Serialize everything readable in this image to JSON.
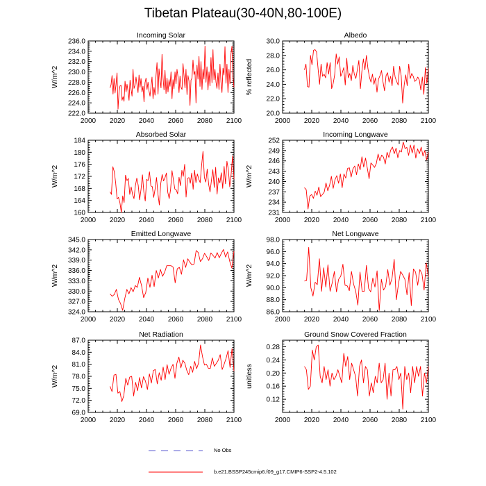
{
  "title": "Tibetan Plateau(30-40N,80-100E)",
  "colors": {
    "series": "#ff0000",
    "axis": "#000000",
    "obs": "#5b5bd0"
  },
  "legend": {
    "obs_label": "No Obs",
    "model_label": "b.e21.BSSP245cmip6.f09_g17.CMIP6-SSP2-4.5.102"
  },
  "chart_data": [
    {
      "type": "line",
      "title": "Incoming Solar",
      "ylabel": "W/m^2",
      "xlim": [
        2000,
        2100
      ],
      "ylim": [
        222,
        236
      ],
      "xticks": [
        2000,
        2020,
        2040,
        2060,
        2080,
        2100
      ],
      "xticklabels": [
        "2000",
        "2020",
        "2040",
        "2060",
        "2080",
        "2100"
      ],
      "yticks": [
        222,
        224,
        226,
        228,
        230,
        232,
        234,
        236
      ],
      "yticklabels": [
        "222.0",
        "224.0",
        "226.0",
        "228.0",
        "230.0",
        "232.0",
        "234.0",
        "236.0"
      ],
      "x_start": 2015,
      "values": [
        226.9,
        227.5,
        229.3,
        225.7,
        228.7,
        225.9,
        227.6,
        229.8,
        222.8,
        226.2,
        227.3,
        227.4,
        224.5,
        225.2,
        224.3,
        228.2,
        226.1,
        227.6,
        226.3,
        224.5,
        228.4,
        226.7,
        225.3,
        230.5,
        226.8,
        227.4,
        229.0,
        227.5,
        226.0,
        229.4,
        227.0,
        228.7,
        226.1,
        227.2,
        224.2,
        227.9,
        228.8,
        226.6,
        228.0,
        226.3,
        225.3,
        227.2,
        229.0,
        224.8,
        227.0,
        225.5,
        229.3,
        231.8,
        225.7,
        230.6,
        228.4,
        226.9,
        233.4,
        228.9,
        226.5,
        230.3,
        225.8,
        228.8,
        226.1,
        228.5,
        227.2,
        230.0,
        224.8,
        228.5,
        226.7,
        230.0,
        227.7,
        230.5,
        229.0,
        226.0,
        229.2,
        227.0,
        226.6,
        231.6,
        229.3,
        226.9,
        230.5,
        225.6,
        229.3,
        228.2,
        223.5,
        228.4,
        228.8,
        232.3,
        229.5,
        230.1,
        224.0,
        231.3,
        228.6,
        233.0,
        227.2,
        232.0,
        226.6,
        230.5,
        228.6,
        235.0,
        228.0,
        231.0,
        226.5,
        230.0,
        227.3,
        232.8,
        227.9,
        234.3,
        228.5,
        230.5,
        228.0,
        226.8,
        229.8,
        226.6,
        231.5,
        228.0,
        226.0,
        230.7,
        229.4,
        234.9,
        227.8,
        231.5,
        226.0,
        230.5,
        227.7,
        233.5,
        235.0,
        229.0,
        227.0
      ]
    },
    {
      "type": "line",
      "title": "Albedo",
      "ylabel": "% reflected",
      "xlim": [
        2000,
        2100
      ],
      "ylim": [
        20,
        30
      ],
      "xticks": [
        2000,
        2020,
        2040,
        2060,
        2080,
        2100
      ],
      "xticklabels": [
        "2000",
        "2020",
        "2040",
        "2060",
        "2080",
        "2100"
      ],
      "yticks": [
        20,
        22,
        24,
        26,
        28,
        30
      ],
      "yticklabels": [
        "20.0",
        "22.0",
        "24.0",
        "26.0",
        "28.0",
        "30.0"
      ],
      "x_start": 2015,
      "values": [
        26.0,
        26.8,
        23.7,
        23.6,
        28.0,
        26.7,
        28.7,
        28.8,
        28.5,
        26.2,
        24.0,
        26.8,
        25.1,
        25.4,
        24.9,
        27.0,
        25.4,
        27.0,
        23.4,
        24.1,
        25.3,
        28.2,
        26.8,
        27.8,
        25.1,
        25.6,
        26.3,
        23.9,
        27.6,
        24.9,
        25.5,
        24.5,
        26.6,
        25.4,
        24.8,
        26.0,
        27.3,
        23.4,
        25.8,
        27.5,
        26.0,
        28.0,
        26.2,
        25.0,
        24.3,
        25.4,
        24.0,
        24.9,
        22.9,
        24.7,
        25.2,
        25.9,
        24.3,
        23.1,
        25.2,
        25.6,
        24.3,
        25.1,
        23.8,
        26.5,
        25.0,
        24.4,
        23.9,
        26.5,
        25.2,
        21.4,
        23.9,
        25.3,
        23.8,
        26.8,
        24.8,
        25.5,
        25.1,
        24.4,
        24.6,
        25.0,
        24.6,
        23.2,
        25.0,
        22.6,
        26.3,
        24.1,
        26.2
      ]
    },
    {
      "type": "line",
      "title": "Absorbed Solar",
      "ylabel": "W/m^2",
      "xlim": [
        2000,
        2100
      ],
      "ylim": [
        160,
        184
      ],
      "xticks": [
        2000,
        2020,
        2040,
        2060,
        2080,
        2100
      ],
      "xticklabels": [
        "2000",
        "2020",
        "2040",
        "2060",
        "2080",
        "2100"
      ],
      "yticks": [
        160,
        164,
        168,
        172,
        176,
        180,
        184
      ],
      "yticklabels": [
        "160",
        "164",
        "168",
        "172",
        "176",
        "180",
        "184"
      ],
      "x_start": 2015,
      "values": [
        166.9,
        166.0,
        175.2,
        173.6,
        169.8,
        164.5,
        165.0,
        163.3,
        160.0,
        165.5,
        163.3,
        172.4,
        170.6,
        171.3,
        166.0,
        168.5,
        166.0,
        164.6,
        168.9,
        171.4,
        169.0,
        164.2,
        167.7,
        172.5,
        166.8,
        163.8,
        171.0,
        170.6,
        173.5,
        168.8,
        168.6,
        165.0,
        167.8,
        171.6,
        166.2,
        162.5,
        169.6,
        172.6,
        170.5,
        171.5,
        173.1,
        166.7,
        164.6,
        167.7,
        173.9,
        170.8,
        167.8,
        167.5,
        166.2,
        171.7,
        168.9,
        174.0,
        172.0,
        176.0,
        165.1,
        171.3,
        171.6,
        169.7,
        173.1,
        167.7,
        174.0,
        169.9,
        172.8,
        171.1,
        169.9,
        175.6,
        180.3,
        171.6,
        170.1,
        174.4,
        169.4,
        166.8,
        170.7,
        174.2,
        168.3,
        175.0,
        166.1,
        171.5,
        169.8,
        173.2,
        168.0,
        175.3,
        169.5,
        177.0,
        174.2,
        168.5,
        172.8,
        178.8,
        171.0
      ]
    },
    {
      "type": "line",
      "title": "Incoming Longwave",
      "ylabel": "W/m^2",
      "xlim": [
        2000,
        2100
      ],
      "ylim": [
        231,
        252
      ],
      "xticks": [
        2000,
        2020,
        2040,
        2060,
        2080,
        2100
      ],
      "xticklabels": [
        "2000",
        "2020",
        "2040",
        "2060",
        "2080",
        "2100"
      ],
      "yticks": [
        231,
        234,
        237,
        240,
        243,
        246,
        249,
        252
      ],
      "yticklabels": [
        "231",
        "234",
        "237",
        "240",
        "243",
        "246",
        "249",
        "252"
      ],
      "x_start": 2015,
      "values": [
        238.2,
        237.6,
        232.0,
        235.8,
        236.2,
        235.1,
        237.2,
        236.0,
        238.4,
        235.6,
        236.2,
        236.9,
        239.6,
        237.3,
        238.9,
        241.5,
        238.0,
        240.5,
        241.7,
        239.5,
        242.2,
        238.2,
        242.2,
        241.0,
        243.8,
        244.0,
        241.3,
        243.7,
        244.5,
        242.0,
        245.1,
        243.4,
        247.2,
        244.2,
        246.8,
        243.9,
        240.8,
        245.4,
        244.8,
        244.1,
        245.2,
        248.0,
        246.0,
        247.7,
        247.1,
        245.1,
        248.5,
        247.0,
        249.1,
        250.0,
        248.1,
        249.7,
        246.9,
        249.0,
        248.6,
        251.5,
        249.6,
        249.9,
        247.6,
        250.6,
        248.3,
        250.6,
        246.8,
        249.5,
        248.1,
        250.0,
        247.4,
        249.0,
        246.3,
        248.5
      ]
    },
    {
      "type": "line",
      "title": "Emitted Longwave",
      "ylabel": "W/m^2",
      "xlim": [
        2000,
        2100
      ],
      "ylim": [
        324,
        345
      ],
      "xticks": [
        2000,
        2020,
        2040,
        2060,
        2080,
        2100
      ],
      "xticklabels": [
        "2000",
        "2020",
        "2040",
        "2060",
        "2080",
        "2100"
      ],
      "yticks": [
        324,
        327,
        330,
        333,
        336,
        339,
        342,
        345
      ],
      "yticklabels": [
        "324.0",
        "327.0",
        "330.0",
        "333.0",
        "336.0",
        "339.0",
        "342.0",
        "345.0"
      ],
      "x_start": 2015,
      "values": [
        329.2,
        328.5,
        329.0,
        330.5,
        327.6,
        326.4,
        324.4,
        327.8,
        330.5,
        329.2,
        331.0,
        329.8,
        331.6,
        331.1,
        334.0,
        331.6,
        328.1,
        329.6,
        333.8,
        331.1,
        334.6,
        331.3,
        336.0,
        333.8,
        336.3,
        334.3,
        335.5,
        337.4,
        337.4,
        337.4,
        337.0,
        332.4,
        336.5,
        336.9,
        334.9,
        339.1,
        336.9,
        339.4,
        338.4,
        337.6,
        337.9,
        341.8,
        341.2,
        338.6,
        339.4,
        341.0,
        340.0,
        338.9,
        341.1,
        340.4,
        339.6,
        341.2,
        339.7,
        341.0,
        342.1,
        339.9,
        341.4,
        338.6,
        336.7,
        341.6
      ]
    },
    {
      "type": "line",
      "title": "Net Longwave",
      "ylabel": "W/m^2",
      "xlim": [
        2000,
        2100
      ],
      "ylim": [
        86,
        98
      ],
      "xticks": [
        2000,
        2020,
        2040,
        2060,
        2080,
        2100
      ],
      "xticklabels": [
        "2000",
        "2020",
        "2040",
        "2060",
        "2080",
        "2100"
      ],
      "yticks": [
        86,
        88,
        90,
        92,
        94,
        96,
        98
      ],
      "yticklabels": [
        "86.0",
        "88.0",
        "90.0",
        "92.0",
        "94.0",
        "96.0",
        "98.0"
      ],
      "x_start": 2015,
      "values": [
        91.1,
        91.2,
        96.7,
        90.0,
        88.6,
        90.9,
        90.5,
        94.8,
        89.4,
        93.3,
        90.1,
        93.8,
        89.4,
        90.8,
        92.7,
        89.3,
        91.4,
        91.9,
        93.9,
        90.4,
        90.3,
        89.5,
        92.7,
        90.6,
        89.4,
        87.1,
        92.6,
        89.4,
        89.4,
        93.7,
        89.9,
        89.3,
        91.6,
        90.1,
        92.8,
        86.2,
        91.4,
        89.6,
        90.2,
        93.0,
        90.4,
        91.6,
        94.7,
        88.0,
        90.6,
        92.7,
        92.1,
        91.4,
        88.8,
        92.5,
        87.0,
        93.1,
        92.6,
        90.4,
        93.0,
        92.3,
        89.6,
        94.1,
        91.8
      ]
    },
    {
      "type": "line",
      "title": "Net Radiation",
      "ylabel": "W/m^2",
      "xlim": [
        2000,
        2100
      ],
      "ylim": [
        69,
        87
      ],
      "xticks": [
        2000,
        2020,
        2040,
        2060,
        2080,
        2100
      ],
      "xticklabels": [
        "2000",
        "2020",
        "2040",
        "2060",
        "2080",
        "2100"
      ],
      "yticks": [
        69,
        72,
        75,
        78,
        81,
        84,
        87
      ],
      "yticklabels": [
        "69.0",
        "72.0",
        "75.0",
        "78.0",
        "81.0",
        "84.0",
        "87.0"
      ],
      "x_start": 2015,
      "values": [
        75.5,
        74.2,
        78.3,
        78.5,
        73.8,
        74.2,
        71.7,
        73.2,
        77.5,
        75.8,
        77.8,
        78.0,
        73.1,
        76.5,
        74.4,
        77.7,
        75.1,
        77.9,
        76.8,
        74.7,
        78.6,
        76.3,
        79.4,
        79.7,
        76.1,
        78.9,
        77.0,
        80.3,
        77.2,
        80.9,
        78.5,
        80.0,
        81.0,
        77.5,
        81.3,
        82.8,
        80.1,
        82.0,
        81.3,
        79.5,
        78.4,
        80.5,
        79.0,
        81.7,
        79.9,
        81.3,
        85.8,
        82.9,
        80.8,
        81.0,
        80.0,
        80.0,
        82.6,
        80.5,
        81.2,
        82.0,
        83.4,
        79.7,
        81.0,
        82.5,
        84.4,
        80.2,
        84.9,
        79.3
      ]
    },
    {
      "type": "line",
      "title": "Ground Snow Covered Fraction",
      "ylabel": "unitless",
      "xlim": [
        2000,
        2100
      ],
      "ylim": [
        0.08,
        0.3
      ],
      "xticks": [
        2000,
        2020,
        2040,
        2060,
        2080,
        2100
      ],
      "xticklabels": [
        "2000",
        "2020",
        "2040",
        "2060",
        "2080",
        "2100"
      ],
      "yticks": [
        0.12,
        0.16,
        0.2,
        0.24,
        0.28
      ],
      "yticklabels": [
        "0.12",
        "0.16",
        "0.20",
        "0.24",
        "0.28"
      ],
      "x_start": 2015,
      "values": [
        0.22,
        0.21,
        0.15,
        0.16,
        0.27,
        0.24,
        0.28,
        0.285,
        0.19,
        0.17,
        0.22,
        0.18,
        0.21,
        0.16,
        0.2,
        0.18,
        0.19,
        0.21,
        0.19,
        0.17,
        0.26,
        0.22,
        0.25,
        0.18,
        0.23,
        0.21,
        0.19,
        0.13,
        0.22,
        0.24,
        0.17,
        0.22,
        0.21,
        0.13,
        0.17,
        0.14,
        0.19,
        0.17,
        0.23,
        0.17,
        0.18,
        0.23,
        0.12,
        0.2,
        0.13,
        0.21,
        0.21,
        0.22,
        0.18,
        0.2,
        0.09,
        0.22,
        0.18,
        0.2,
        0.14,
        0.22,
        0.17,
        0.22,
        0.19,
        0.22,
        0.13,
        0.2,
        0.17,
        0.22
      ]
    }
  ]
}
